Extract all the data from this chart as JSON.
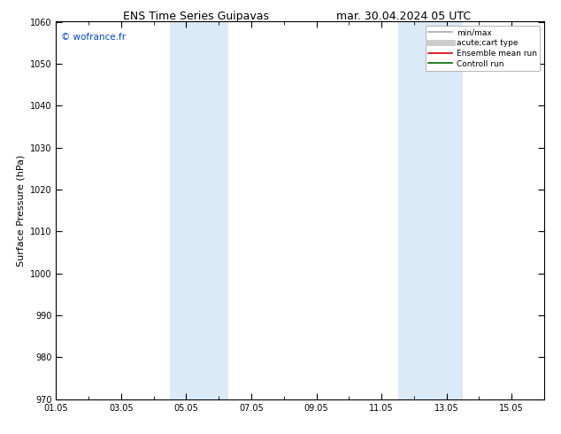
{
  "title_left": "ENS Time Series Guipavas",
  "title_right": "mar. 30.04.2024 05 UTC",
  "ylabel": "Surface Pressure (hPa)",
  "ylim": [
    970,
    1060
  ],
  "yticks": [
    970,
    980,
    990,
    1000,
    1010,
    1020,
    1030,
    1040,
    1050,
    1060
  ],
  "xtick_labels": [
    "01.05",
    "03.05",
    "05.05",
    "07.05",
    "09.05",
    "11.05",
    "13.05",
    "15.05"
  ],
  "xtick_positions": [
    0,
    2,
    4,
    6,
    8,
    10,
    12,
    14
  ],
  "xlim": [
    0,
    15
  ],
  "shaded_regions": [
    {
      "start": 3.5,
      "end": 5.3
    },
    {
      "start": 10.5,
      "end": 12.5
    }
  ],
  "shaded_color": "#dbeaf7",
  "watermark": "© wofrance.fr",
  "watermark_color": "#0044cc",
  "legend_items": [
    {
      "label": "min/max",
      "color": "#aaaaaa",
      "lw": 1.2
    },
    {
      "label": "acute;cart type",
      "color": "#cccccc",
      "lw": 5
    },
    {
      "label": "Ensemble mean run",
      "color": "#dd0000",
      "lw": 1.2
    },
    {
      "label": "Controll run",
      "color": "#006600",
      "lw": 1.2
    }
  ],
  "bg_color": "#ffffff",
  "plot_bg_color": "#ffffff",
  "title_fontsize": 9,
  "tick_fontsize": 7,
  "ylabel_fontsize": 8,
  "legend_fontsize": 6.5
}
